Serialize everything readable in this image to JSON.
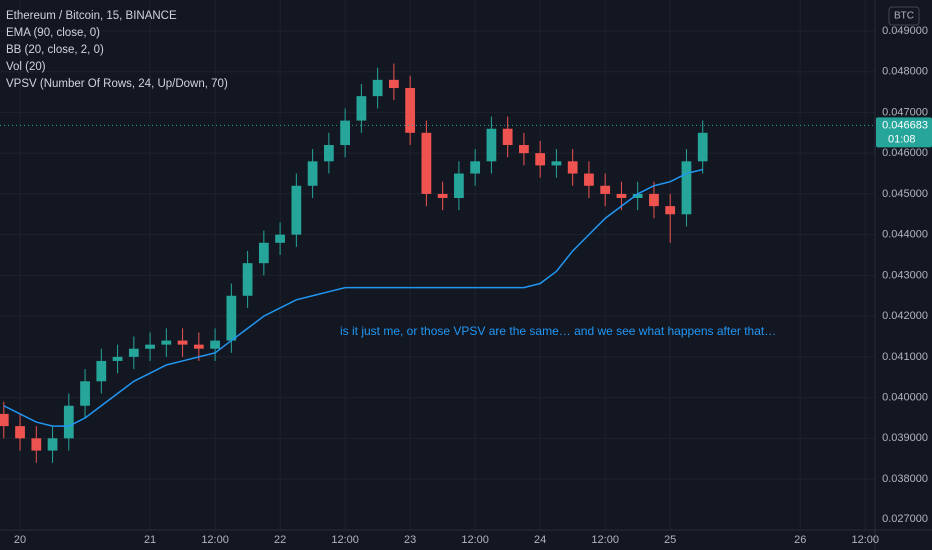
{
  "chart_data": {
    "type": "candlestick",
    "title": "Ethereum / Bitcoin, 15, BINANCE",
    "indicators": [
      "EMA (90, close, 0)",
      "BB (20, close, 2, 0)",
      "Vol (20)",
      "VPSV (Number Of Rows, 24, Up/Down, 70)"
    ],
    "currency_badge": "BTC",
    "annotation": "is it just me, or those VPSV are the same… and we see what happens after that…",
    "last_price": {
      "value": 0.046683,
      "label": "0.046683"
    },
    "countdown": "01:08",
    "volume_axis_label": "0.027000",
    "up_color": "#26a69a",
    "down_color": "#ef5350",
    "ema_color": "#2196f3",
    "x": [
      -3,
      0,
      3,
      6,
      9,
      12,
      15,
      18,
      21,
      24,
      27,
      30,
      33,
      36,
      39,
      42,
      45,
      48,
      51,
      54,
      57,
      60,
      63,
      66,
      69,
      72,
      75,
      78,
      81,
      84,
      87,
      90,
      93,
      96,
      99,
      102,
      105,
      108,
      111,
      114,
      117,
      120,
      123,
      126
    ],
    "open": [
      0.0396,
      0.0393,
      0.039,
      0.0387,
      0.039,
      0.0398,
      0.0404,
      0.0409,
      0.041,
      0.0412,
      0.0413,
      0.0414,
      0.0413,
      0.0412,
      0.0414,
      0.0425,
      0.0433,
      0.0438,
      0.044,
      0.0452,
      0.0458,
      0.0462,
      0.0468,
      0.0474,
      0.0478,
      0.0476,
      0.0465,
      0.045,
      0.0449,
      0.0455,
      0.0458,
      0.0466,
      0.0462,
      0.046,
      0.0457,
      0.0458,
      0.0455,
      0.0452,
      0.045,
      0.0449,
      0.045,
      0.0447,
      0.0445,
      0.0458
    ],
    "close": [
      0.0393,
      0.039,
      0.0387,
      0.039,
      0.0398,
      0.0404,
      0.0409,
      0.041,
      0.0412,
      0.0413,
      0.0414,
      0.0413,
      0.0412,
      0.0414,
      0.0425,
      0.0433,
      0.0438,
      0.044,
      0.0452,
      0.0458,
      0.0462,
      0.0468,
      0.0474,
      0.0478,
      0.0476,
      0.0465,
      0.045,
      0.0449,
      0.0455,
      0.0458,
      0.0466,
      0.0462,
      0.046,
      0.0457,
      0.0458,
      0.0455,
      0.0452,
      0.045,
      0.0449,
      0.045,
      0.0447,
      0.0445,
      0.0458,
      0.0465
    ],
    "high": [
      0.0399,
      0.0396,
      0.0393,
      0.0393,
      0.0401,
      0.0407,
      0.0412,
      0.0413,
      0.0415,
      0.0416,
      0.0417,
      0.0417,
      0.0416,
      0.0417,
      0.0428,
      0.0436,
      0.0441,
      0.0443,
      0.0455,
      0.0461,
      0.0465,
      0.0471,
      0.0477,
      0.0481,
      0.0482,
      0.0479,
      0.0468,
      0.0453,
      0.0458,
      0.0461,
      0.0469,
      0.0469,
      0.0465,
      0.0463,
      0.0461,
      0.0461,
      0.0458,
      0.0455,
      0.0453,
      0.0453,
      0.0453,
      0.045,
      0.0461,
      0.0468
    ],
    "low": [
      0.039,
      0.0387,
      0.0384,
      0.0384,
      0.0387,
      0.0395,
      0.0401,
      0.0406,
      0.0407,
      0.0409,
      0.041,
      0.041,
      0.0409,
      0.0409,
      0.0411,
      0.0422,
      0.043,
      0.0435,
      0.0437,
      0.0449,
      0.0455,
      0.0459,
      0.0465,
      0.0471,
      0.0473,
      0.0462,
      0.0447,
      0.0446,
      0.0446,
      0.0452,
      0.0455,
      0.0459,
      0.0457,
      0.0454,
      0.0454,
      0.0452,
      0.0449,
      0.0447,
      0.0446,
      0.0446,
      0.0444,
      0.0438,
      0.0442,
      0.0455
    ],
    "ema": [
      0.0398,
      0.0396,
      0.0394,
      0.0393,
      0.0393,
      0.0395,
      0.0398,
      0.0401,
      0.0404,
      0.0406,
      0.0408,
      0.0409,
      0.041,
      0.0411,
      0.0414,
      0.0417,
      0.042,
      0.0422,
      0.0424,
      0.0425,
      0.0426,
      0.0427,
      0.0427,
      0.0427,
      0.0427,
      0.0427,
      0.0427,
      0.0427,
      0.0427,
      0.0427,
      0.0427,
      0.0427,
      0.0427,
      0.0428,
      0.0431,
      0.0436,
      0.044,
      0.0444,
      0.0447,
      0.045,
      0.0452,
      0.0453,
      0.0455,
      0.0456
    ],
    "xlim": [
      -3.7,
      157.8
    ],
    "xticks": [
      {
        "value": 0,
        "label": "20"
      },
      {
        "value": 24,
        "label": "21"
      },
      {
        "value": 36,
        "label": "12:00"
      },
      {
        "value": 48,
        "label": "22"
      },
      {
        "value": 60,
        "label": "12:00"
      },
      {
        "value": 72,
        "label": "23"
      },
      {
        "value": 84,
        "label": "12:00"
      },
      {
        "value": 96,
        "label": "24"
      },
      {
        "value": 108,
        "label": "12:00"
      },
      {
        "value": 120,
        "label": "25"
      },
      {
        "value": 144,
        "label": "26"
      },
      {
        "value": 156,
        "label": "12:00"
      }
    ],
    "ylim": [
      0.03675,
      0.04976
    ],
    "yticks": [
      {
        "value": 0.038,
        "label": "0.038000"
      },
      {
        "value": 0.039,
        "label": "0.039000"
      },
      {
        "value": 0.04,
        "label": "0.040000"
      },
      {
        "value": 0.041,
        "label": "0.041000"
      },
      {
        "value": 0.042,
        "label": "0.042000"
      },
      {
        "value": 0.043,
        "label": "0.043000"
      },
      {
        "value": 0.044,
        "label": "0.044000"
      },
      {
        "value": 0.045,
        "label": "0.045000"
      },
      {
        "value": 0.046,
        "label": "0.046000"
      },
      {
        "value": 0.047,
        "label": "0.047000"
      },
      {
        "value": 0.048,
        "label": "0.048000"
      },
      {
        "value": 0.049,
        "label": "0.049000"
      }
    ],
    "grid": true
  }
}
